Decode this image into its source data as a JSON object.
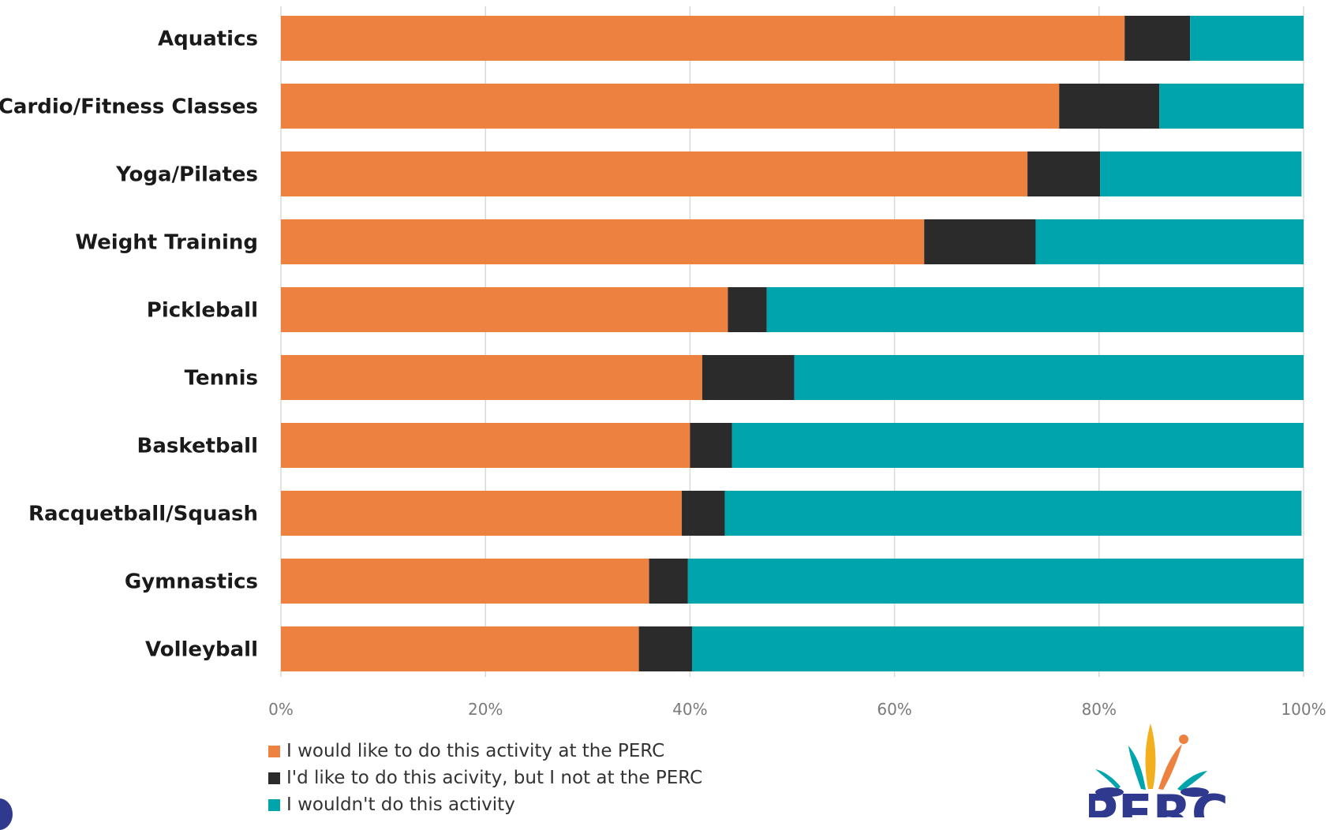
{
  "chart_data": {
    "type": "bar",
    "orientation": "horizontal",
    "stacked": "percent",
    "categories": [
      "Aquatics",
      "Cardio/Fitness Classes",
      "Yoga/Pilates",
      "Weight Training",
      "Pickleball",
      "Tennis",
      "Basketball",
      "Racquetball/Squash",
      "Gymnastics",
      "Volleyball"
    ],
    "series": [
      {
        "name": "I would like to do this activity at the PERC",
        "color": "#ED8240",
        "values": [
          82.5,
          76.1,
          73.0,
          62.9,
          43.7,
          41.2,
          40.0,
          39.2,
          36.0,
          35.0
        ]
      },
      {
        "name": "I'd like to do this acivity, but I not at the PERC",
        "color": "#2B2B2B",
        "values": [
          6.4,
          9.8,
          7.1,
          10.9,
          3.8,
          9.0,
          4.1,
          4.2,
          3.8,
          5.2
        ]
      },
      {
        "name": "I wouldn't do this activity",
        "color": "#00A4AD",
        "values": [
          11.1,
          14.1,
          19.7,
          26.2,
          52.5,
          49.8,
          55.9,
          56.4,
          60.2,
          59.8
        ]
      }
    ],
    "xlim": [
      0,
      100
    ],
    "xticks": [
      "0%",
      "20%",
      "40%",
      "60%",
      "80%",
      "100%"
    ],
    "grid": true,
    "legend": "bottom-left"
  },
  "logo": {
    "name": "perc-logo-icon",
    "text": "PERC"
  }
}
